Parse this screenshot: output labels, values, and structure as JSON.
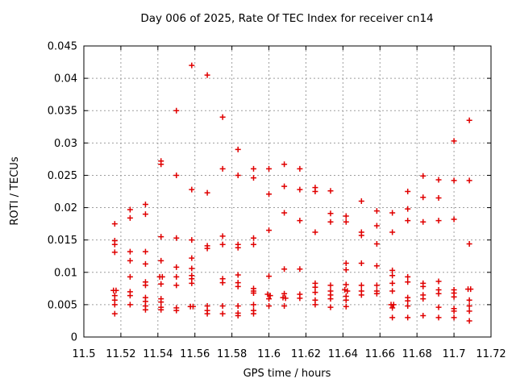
{
  "chart_data": {
    "type": "scatter",
    "title": "Day 006 of 2025, Rate Of TEC Index for receiver cn14",
    "xlabel": "GPS time / hours",
    "ylabel": "ROTI / TECUs",
    "xlim": [
      11.5,
      11.72
    ],
    "ylim": [
      0,
      0.045
    ],
    "grid": true,
    "legend": "none",
    "xticks": {
      "values": [
        11.5,
        11.52,
        11.54,
        11.56,
        11.58,
        11.6,
        11.62,
        11.64,
        11.66,
        11.68,
        11.7,
        11.72
      ],
      "labels": [
        "11.5",
        "11.52",
        "11.54",
        "11.56",
        "11.58",
        "11.6",
        "11.62",
        "11.64",
        "11.66",
        "11.68",
        "11.7",
        "11.72"
      ]
    },
    "yticks": {
      "values": [
        0,
        0.005,
        0.01,
        0.015,
        0.02,
        0.025,
        0.03,
        0.035,
        0.04,
        0.045
      ],
      "labels": [
        "0",
        "0.005",
        "0.01",
        "0.015",
        "0.02",
        "0.025",
        "0.03",
        "0.035",
        "0.04",
        "0.045"
      ]
    },
    "marker": {
      "shape": "plus",
      "color": "#e00000",
      "size": 7,
      "stroke_width": 1.5
    },
    "colors": {
      "axis": "#000000",
      "grid": "#9e9e9e",
      "background": "#ffffff",
      "text": "#000000"
    },
    "series": [
      {
        "name": "ROTI",
        "points": [
          [
            11.5167,
            0.0175
          ],
          [
            11.5167,
            0.0149
          ],
          [
            11.5167,
            0.0143
          ],
          [
            11.5167,
            0.0131
          ],
          [
            11.516,
            0.0072
          ],
          [
            11.5174,
            0.0072
          ],
          [
            11.5167,
            0.0064
          ],
          [
            11.5167,
            0.0057
          ],
          [
            11.5167,
            0.005
          ],
          [
            11.5167,
            0.0036
          ],
          [
            11.525,
            0.0197
          ],
          [
            11.525,
            0.0184
          ],
          [
            11.525,
            0.0132
          ],
          [
            11.525,
            0.0118
          ],
          [
            11.525,
            0.0093
          ],
          [
            11.525,
            0.007
          ],
          [
            11.525,
            0.0064
          ],
          [
            11.525,
            0.005
          ],
          [
            11.5333,
            0.0205
          ],
          [
            11.5333,
            0.019
          ],
          [
            11.5333,
            0.0132
          ],
          [
            11.5333,
            0.0113
          ],
          [
            11.5333,
            0.0085
          ],
          [
            11.5333,
            0.008
          ],
          [
            11.5333,
            0.0061
          ],
          [
            11.5333,
            0.0055
          ],
          [
            11.5333,
            0.0048
          ],
          [
            11.5333,
            0.0042
          ],
          [
            11.5417,
            0.0272
          ],
          [
            11.5417,
            0.0267
          ],
          [
            11.5417,
            0.0155
          ],
          [
            11.5417,
            0.0118
          ],
          [
            11.541,
            0.0093
          ],
          [
            11.5424,
            0.0093
          ],
          [
            11.5417,
            0.0082
          ],
          [
            11.5417,
            0.0059
          ],
          [
            11.5417,
            0.0054
          ],
          [
            11.5417,
            0.0046
          ],
          [
            11.5417,
            0.0042
          ],
          [
            11.55,
            0.035
          ],
          [
            11.55,
            0.025
          ],
          [
            11.55,
            0.0153
          ],
          [
            11.55,
            0.0108
          ],
          [
            11.55,
            0.0093
          ],
          [
            11.55,
            0.008
          ],
          [
            11.55,
            0.0045
          ],
          [
            11.55,
            0.0041
          ],
          [
            11.5583,
            0.042
          ],
          [
            11.5583,
            0.0228
          ],
          [
            11.5583,
            0.015
          ],
          [
            11.5583,
            0.0122
          ],
          [
            11.5583,
            0.0106
          ],
          [
            11.5583,
            0.0095
          ],
          [
            11.5583,
            0.009
          ],
          [
            11.5583,
            0.0083
          ],
          [
            11.5576,
            0.0047
          ],
          [
            11.559,
            0.0047
          ],
          [
            11.5667,
            0.0405
          ],
          [
            11.5667,
            0.0223
          ],
          [
            11.5667,
            0.0141
          ],
          [
            11.5667,
            0.0137
          ],
          [
            11.5667,
            0.0048
          ],
          [
            11.5667,
            0.0041
          ],
          [
            11.5667,
            0.0036
          ],
          [
            11.575,
            0.034
          ],
          [
            11.575,
            0.026
          ],
          [
            11.575,
            0.0156
          ],
          [
            11.575,
            0.0143
          ],
          [
            11.575,
            0.009
          ],
          [
            11.575,
            0.0084
          ],
          [
            11.575,
            0.0048
          ],
          [
            11.575,
            0.0036
          ],
          [
            11.5833,
            0.029
          ],
          [
            11.5833,
            0.025
          ],
          [
            11.5833,
            0.0143
          ],
          [
            11.5833,
            0.0138
          ],
          [
            11.5833,
            0.0096
          ],
          [
            11.5833,
            0.0084
          ],
          [
            11.5833,
            0.0078
          ],
          [
            11.5833,
            0.0048
          ],
          [
            11.5833,
            0.0037
          ],
          [
            11.5833,
            0.0033
          ],
          [
            11.5917,
            0.026
          ],
          [
            11.5917,
            0.0246
          ],
          [
            11.5917,
            0.0153
          ],
          [
            11.5917,
            0.0143
          ],
          [
            11.5917,
            0.0075
          ],
          [
            11.5917,
            0.0071
          ],
          [
            11.5917,
            0.0068
          ],
          [
            11.5917,
            0.005
          ],
          [
            11.5917,
            0.0041
          ],
          [
            11.5917,
            0.0036
          ],
          [
            11.6,
            0.026
          ],
          [
            11.6,
            0.0221
          ],
          [
            11.6,
            0.0165
          ],
          [
            11.6,
            0.0094
          ],
          [
            11.5993,
            0.0066
          ],
          [
            11.6007,
            0.0064
          ],
          [
            11.6,
            0.0059
          ],
          [
            11.6,
            0.0048
          ],
          [
            11.6083,
            0.0267
          ],
          [
            11.6083,
            0.0233
          ],
          [
            11.6083,
            0.0192
          ],
          [
            11.6083,
            0.0105
          ],
          [
            11.6083,
            0.0067
          ],
          [
            11.6076,
            0.0061
          ],
          [
            11.609,
            0.006
          ],
          [
            11.6083,
            0.0048
          ],
          [
            11.6167,
            0.026
          ],
          [
            11.6167,
            0.0228
          ],
          [
            11.6167,
            0.018
          ],
          [
            11.6167,
            0.0105
          ],
          [
            11.6167,
            0.0066
          ],
          [
            11.6167,
            0.006
          ],
          [
            11.625,
            0.0231
          ],
          [
            11.625,
            0.0225
          ],
          [
            11.625,
            0.0162
          ],
          [
            11.625,
            0.0083
          ],
          [
            11.625,
            0.0077
          ],
          [
            11.625,
            0.0069
          ],
          [
            11.625,
            0.0057
          ],
          [
            11.625,
            0.005
          ],
          [
            11.6333,
            0.0226
          ],
          [
            11.6333,
            0.0191
          ],
          [
            11.6333,
            0.0178
          ],
          [
            11.6333,
            0.008
          ],
          [
            11.6333,
            0.0071
          ],
          [
            11.6333,
            0.0065
          ],
          [
            11.6333,
            0.0059
          ],
          [
            11.6333,
            0.0046
          ],
          [
            11.6417,
            0.0187
          ],
          [
            11.6417,
            0.0178
          ],
          [
            11.6417,
            0.0114
          ],
          [
            11.6417,
            0.0104
          ],
          [
            11.6417,
            0.0081
          ],
          [
            11.641,
            0.0073
          ],
          [
            11.6424,
            0.0071
          ],
          [
            11.6417,
            0.0063
          ],
          [
            11.6417,
            0.0057
          ],
          [
            11.6417,
            0.0047
          ],
          [
            11.65,
            0.021
          ],
          [
            11.65,
            0.0162
          ],
          [
            11.65,
            0.0157
          ],
          [
            11.65,
            0.0114
          ],
          [
            11.65,
            0.008
          ],
          [
            11.65,
            0.0071
          ],
          [
            11.65,
            0.0065
          ],
          [
            11.6583,
            0.0195
          ],
          [
            11.6583,
            0.0172
          ],
          [
            11.6583,
            0.0144
          ],
          [
            11.6583,
            0.011
          ],
          [
            11.6583,
            0.008
          ],
          [
            11.6583,
            0.0071
          ],
          [
            11.6583,
            0.0067
          ],
          [
            11.6667,
            0.0192
          ],
          [
            11.6667,
            0.0162
          ],
          [
            11.6667,
            0.0103
          ],
          [
            11.6667,
            0.0095
          ],
          [
            11.6667,
            0.0083
          ],
          [
            11.6667,
            0.0071
          ],
          [
            11.666,
            0.005
          ],
          [
            11.6674,
            0.005
          ],
          [
            11.6667,
            0.0045
          ],
          [
            11.6667,
            0.003
          ],
          [
            11.675,
            0.0225
          ],
          [
            11.675,
            0.0198
          ],
          [
            11.675,
            0.018
          ],
          [
            11.675,
            0.0093
          ],
          [
            11.675,
            0.0085
          ],
          [
            11.675,
            0.0061
          ],
          [
            11.675,
            0.0056
          ],
          [
            11.675,
            0.0048
          ],
          [
            11.675,
            0.003
          ],
          [
            11.6833,
            0.0249
          ],
          [
            11.6833,
            0.0216
          ],
          [
            11.6833,
            0.0178
          ],
          [
            11.6833,
            0.0083
          ],
          [
            11.6833,
            0.0078
          ],
          [
            11.6833,
            0.0065
          ],
          [
            11.6833,
            0.0059
          ],
          [
            11.6833,
            0.0033
          ],
          [
            11.6917,
            0.0243
          ],
          [
            11.6917,
            0.0215
          ],
          [
            11.6917,
            0.018
          ],
          [
            11.6917,
            0.0086
          ],
          [
            11.6917,
            0.0073
          ],
          [
            11.6917,
            0.0067
          ],
          [
            11.6917,
            0.0046
          ],
          [
            11.6917,
            0.003
          ],
          [
            11.7,
            0.0303
          ],
          [
            11.7,
            0.0242
          ],
          [
            11.7,
            0.0182
          ],
          [
            11.7,
            0.0073
          ],
          [
            11.7,
            0.0068
          ],
          [
            11.7,
            0.0062
          ],
          [
            11.7,
            0.0044
          ],
          [
            11.7,
            0.004
          ],
          [
            11.7,
            0.003
          ],
          [
            11.7083,
            0.0335
          ],
          [
            11.7083,
            0.0242
          ],
          [
            11.7083,
            0.0144
          ],
          [
            11.7076,
            0.0074
          ],
          [
            11.709,
            0.0074
          ],
          [
            11.7083,
            0.0057
          ],
          [
            11.7083,
            0.0048
          ],
          [
            11.7083,
            0.004
          ],
          [
            11.7083,
            0.0025
          ]
        ]
      }
    ]
  }
}
